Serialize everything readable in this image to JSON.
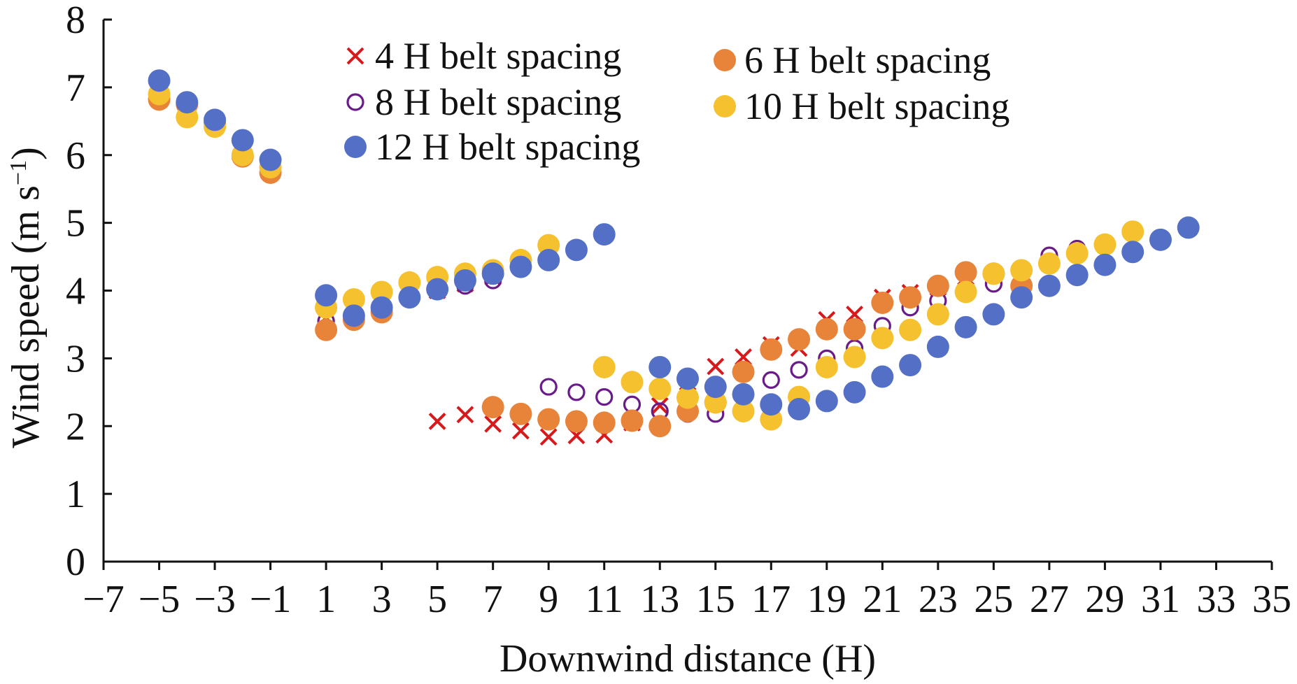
{
  "chart_data": {
    "type": "scatter",
    "xlabel": "Downwind distance (H)",
    "ylabel": "Wind speed (m s",
    "ylabel_sup": "−1",
    "ylabel_end": ")",
    "xlim": [
      -7,
      35
    ],
    "ylim": [
      0,
      8
    ],
    "x_ticks": [
      -7,
      -5,
      -3,
      -1,
      1,
      3,
      5,
      7,
      9,
      11,
      13,
      15,
      17,
      19,
      21,
      23,
      25,
      27,
      29,
      31,
      33,
      35
    ],
    "x_tick_labels": [
      "−7",
      "−5",
      "−3",
      "−1",
      "1",
      "3",
      "5",
      "7",
      "9",
      "11",
      "13",
      "15",
      "17",
      "19",
      "21",
      "23",
      "25",
      "27",
      "29",
      "31",
      "33",
      "35"
    ],
    "y_ticks": [
      0,
      1,
      2,
      3,
      4,
      5,
      6,
      7,
      8
    ],
    "y_tick_labels": [
      "0",
      "1",
      "2",
      "3",
      "4",
      "5",
      "6",
      "7",
      "8"
    ],
    "grid": false,
    "legend_position": "top",
    "series": [
      {
        "name": "4 H belt spacing",
        "marker": "x",
        "color": "#d7191c",
        "points": [
          [
            -5,
            6.95
          ],
          [
            -4,
            6.75
          ],
          [
            -3,
            6.5
          ],
          [
            -2,
            6.0
          ],
          [
            -1,
            5.85
          ],
          [
            1,
            3.6
          ],
          [
            2,
            3.6
          ],
          [
            3,
            3.75
          ],
          [
            4,
            3.9
          ],
          [
            5,
            4.0
          ],
          [
            6,
            4.1
          ],
          [
            7,
            4.2
          ],
          [
            5,
            2.07
          ],
          [
            6,
            2.17
          ],
          [
            7,
            2.03
          ],
          [
            8,
            1.93
          ],
          [
            9,
            1.84
          ],
          [
            10,
            1.86
          ],
          [
            11,
            1.87
          ],
          [
            12,
            2.05
          ],
          [
            13,
            2.3
          ],
          [
            14,
            2.45
          ],
          [
            15,
            2.88
          ],
          [
            16,
            3.02
          ],
          [
            17,
            3.2
          ],
          [
            18,
            3.15
          ],
          [
            19,
            3.57
          ],
          [
            20,
            3.65
          ],
          [
            21,
            3.9
          ],
          [
            22,
            3.97
          ],
          [
            23,
            4.05
          ],
          [
            24,
            4.2
          ]
        ]
      },
      {
        "name": "6 H belt spacing",
        "marker": "filled",
        "color": "#e8833a",
        "points": [
          [
            -5,
            6.82
          ],
          [
            -4,
            6.75
          ],
          [
            -3,
            6.48
          ],
          [
            -2,
            5.98
          ],
          [
            -1,
            5.74
          ],
          [
            1,
            3.42
          ],
          [
            2,
            3.57
          ],
          [
            3,
            3.68
          ],
          [
            7,
            2.28
          ],
          [
            8,
            2.18
          ],
          [
            9,
            2.1
          ],
          [
            10,
            2.07
          ],
          [
            11,
            2.05
          ],
          [
            12,
            2.08
          ],
          [
            13,
            2.0
          ],
          [
            14,
            2.22
          ],
          [
            15,
            2.35
          ],
          [
            16,
            2.8
          ],
          [
            17,
            3.13
          ],
          [
            18,
            3.28
          ],
          [
            19,
            3.43
          ],
          [
            20,
            3.43
          ],
          [
            21,
            3.82
          ],
          [
            22,
            3.9
          ],
          [
            23,
            4.07
          ],
          [
            24,
            4.27
          ],
          [
            25,
            4.25
          ],
          [
            26,
            4.07
          ]
        ]
      },
      {
        "name": "8 H belt spacing",
        "marker": "open",
        "color": "#6a1b8a",
        "points": [
          [
            -5,
            6.95
          ],
          [
            -4,
            6.75
          ],
          [
            -3,
            6.5
          ],
          [
            -2,
            6.0
          ],
          [
            -1,
            5.85
          ],
          [
            1,
            3.55
          ],
          [
            2,
            3.6
          ],
          [
            3,
            3.75
          ],
          [
            4,
            3.9
          ],
          [
            5,
            4.0
          ],
          [
            6,
            4.07
          ],
          [
            7,
            4.15
          ],
          [
            9,
            2.58
          ],
          [
            10,
            2.5
          ],
          [
            11,
            2.43
          ],
          [
            12,
            2.32
          ],
          [
            13,
            2.22
          ],
          [
            14,
            2.18
          ],
          [
            15,
            2.18
          ],
          [
            16,
            2.45
          ],
          [
            17,
            2.68
          ],
          [
            18,
            2.83
          ],
          [
            19,
            3.0
          ],
          [
            20,
            3.15
          ],
          [
            21,
            3.48
          ],
          [
            22,
            3.75
          ],
          [
            23,
            3.85
          ],
          [
            24,
            3.95
          ],
          [
            25,
            4.1
          ],
          [
            26,
            4.33
          ],
          [
            27,
            4.52
          ],
          [
            28,
            4.62
          ]
        ]
      },
      {
        "name": "10 H belt spacing",
        "marker": "filled",
        "color": "#f6c12e",
        "points": [
          [
            -5,
            6.9
          ],
          [
            -4,
            6.56
          ],
          [
            -3,
            6.42
          ],
          [
            -2,
            6.0
          ],
          [
            -1,
            5.82
          ],
          [
            1,
            3.75
          ],
          [
            2,
            3.87
          ],
          [
            3,
            3.98
          ],
          [
            4,
            4.12
          ],
          [
            5,
            4.2
          ],
          [
            6,
            4.25
          ],
          [
            7,
            4.3
          ],
          [
            8,
            4.45
          ],
          [
            9,
            4.67
          ],
          [
            11,
            2.87
          ],
          [
            12,
            2.65
          ],
          [
            13,
            2.55
          ],
          [
            14,
            2.42
          ],
          [
            15,
            2.35
          ],
          [
            16,
            2.22
          ],
          [
            17,
            2.1
          ],
          [
            18,
            2.43
          ],
          [
            19,
            2.87
          ],
          [
            20,
            3.02
          ],
          [
            21,
            3.3
          ],
          [
            22,
            3.42
          ],
          [
            23,
            3.65
          ],
          [
            24,
            3.98
          ],
          [
            25,
            4.25
          ],
          [
            26,
            4.3
          ],
          [
            27,
            4.4
          ],
          [
            28,
            4.55
          ],
          [
            29,
            4.68
          ],
          [
            30,
            4.87
          ]
        ]
      },
      {
        "name": "12 H belt spacing",
        "marker": "filled",
        "color": "#5470c6",
        "points": [
          [
            -5,
            7.1
          ],
          [
            -4,
            6.78
          ],
          [
            -3,
            6.52
          ],
          [
            -2,
            6.22
          ],
          [
            -1,
            5.93
          ],
          [
            1,
            3.93
          ],
          [
            2,
            3.63
          ],
          [
            3,
            3.75
          ],
          [
            4,
            3.9
          ],
          [
            5,
            4.02
          ],
          [
            6,
            4.15
          ],
          [
            7,
            4.25
          ],
          [
            8,
            4.35
          ],
          [
            9,
            4.45
          ],
          [
            10,
            4.6
          ],
          [
            11,
            4.83
          ],
          [
            13,
            2.87
          ],
          [
            14,
            2.7
          ],
          [
            15,
            2.58
          ],
          [
            16,
            2.47
          ],
          [
            17,
            2.32
          ],
          [
            18,
            2.25
          ],
          [
            19,
            2.37
          ],
          [
            20,
            2.5
          ],
          [
            21,
            2.73
          ],
          [
            22,
            2.9
          ],
          [
            23,
            3.17
          ],
          [
            24,
            3.46
          ],
          [
            25,
            3.65
          ],
          [
            26,
            3.9
          ],
          [
            27,
            4.07
          ],
          [
            28,
            4.23
          ],
          [
            29,
            4.38
          ],
          [
            30,
            4.57
          ],
          [
            31,
            4.75
          ],
          [
            32,
            4.93
          ]
        ]
      }
    ]
  }
}
